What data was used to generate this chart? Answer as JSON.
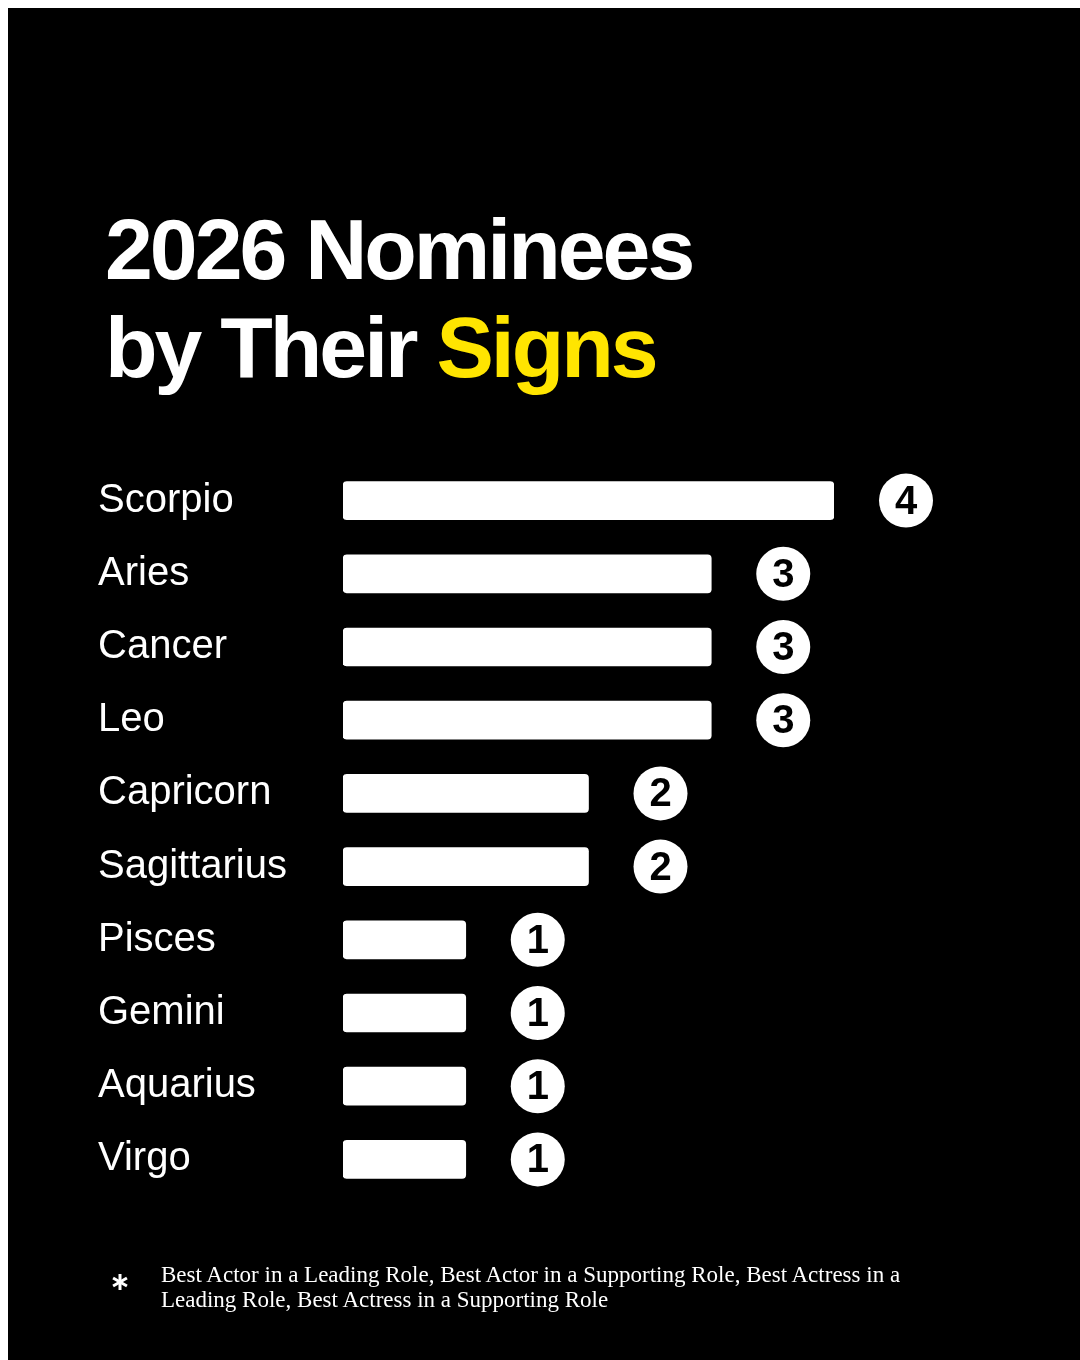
{
  "chart_data": {
    "type": "bar",
    "orientation": "horizontal",
    "title": "2026 Nominees by Their Signs",
    "categories": [
      "Scorpio",
      "Aries",
      "Cancer",
      "Leo",
      "Capricorn",
      "Sagittarius",
      "Pisces",
      "Gemini",
      "Aquarius",
      "Virgo"
    ],
    "values": [
      4,
      3,
      3,
      3,
      2,
      2,
      1,
      1,
      1,
      1
    ],
    "color": "#ffffff",
    "data_labels": true,
    "legend": false,
    "annotations": [
      "Best Actor in a Leading Role, Best Actor in a Supporting Role, Best Actress in a Leading Role, Best Actress in a Supporting Role"
    ]
  }
}
